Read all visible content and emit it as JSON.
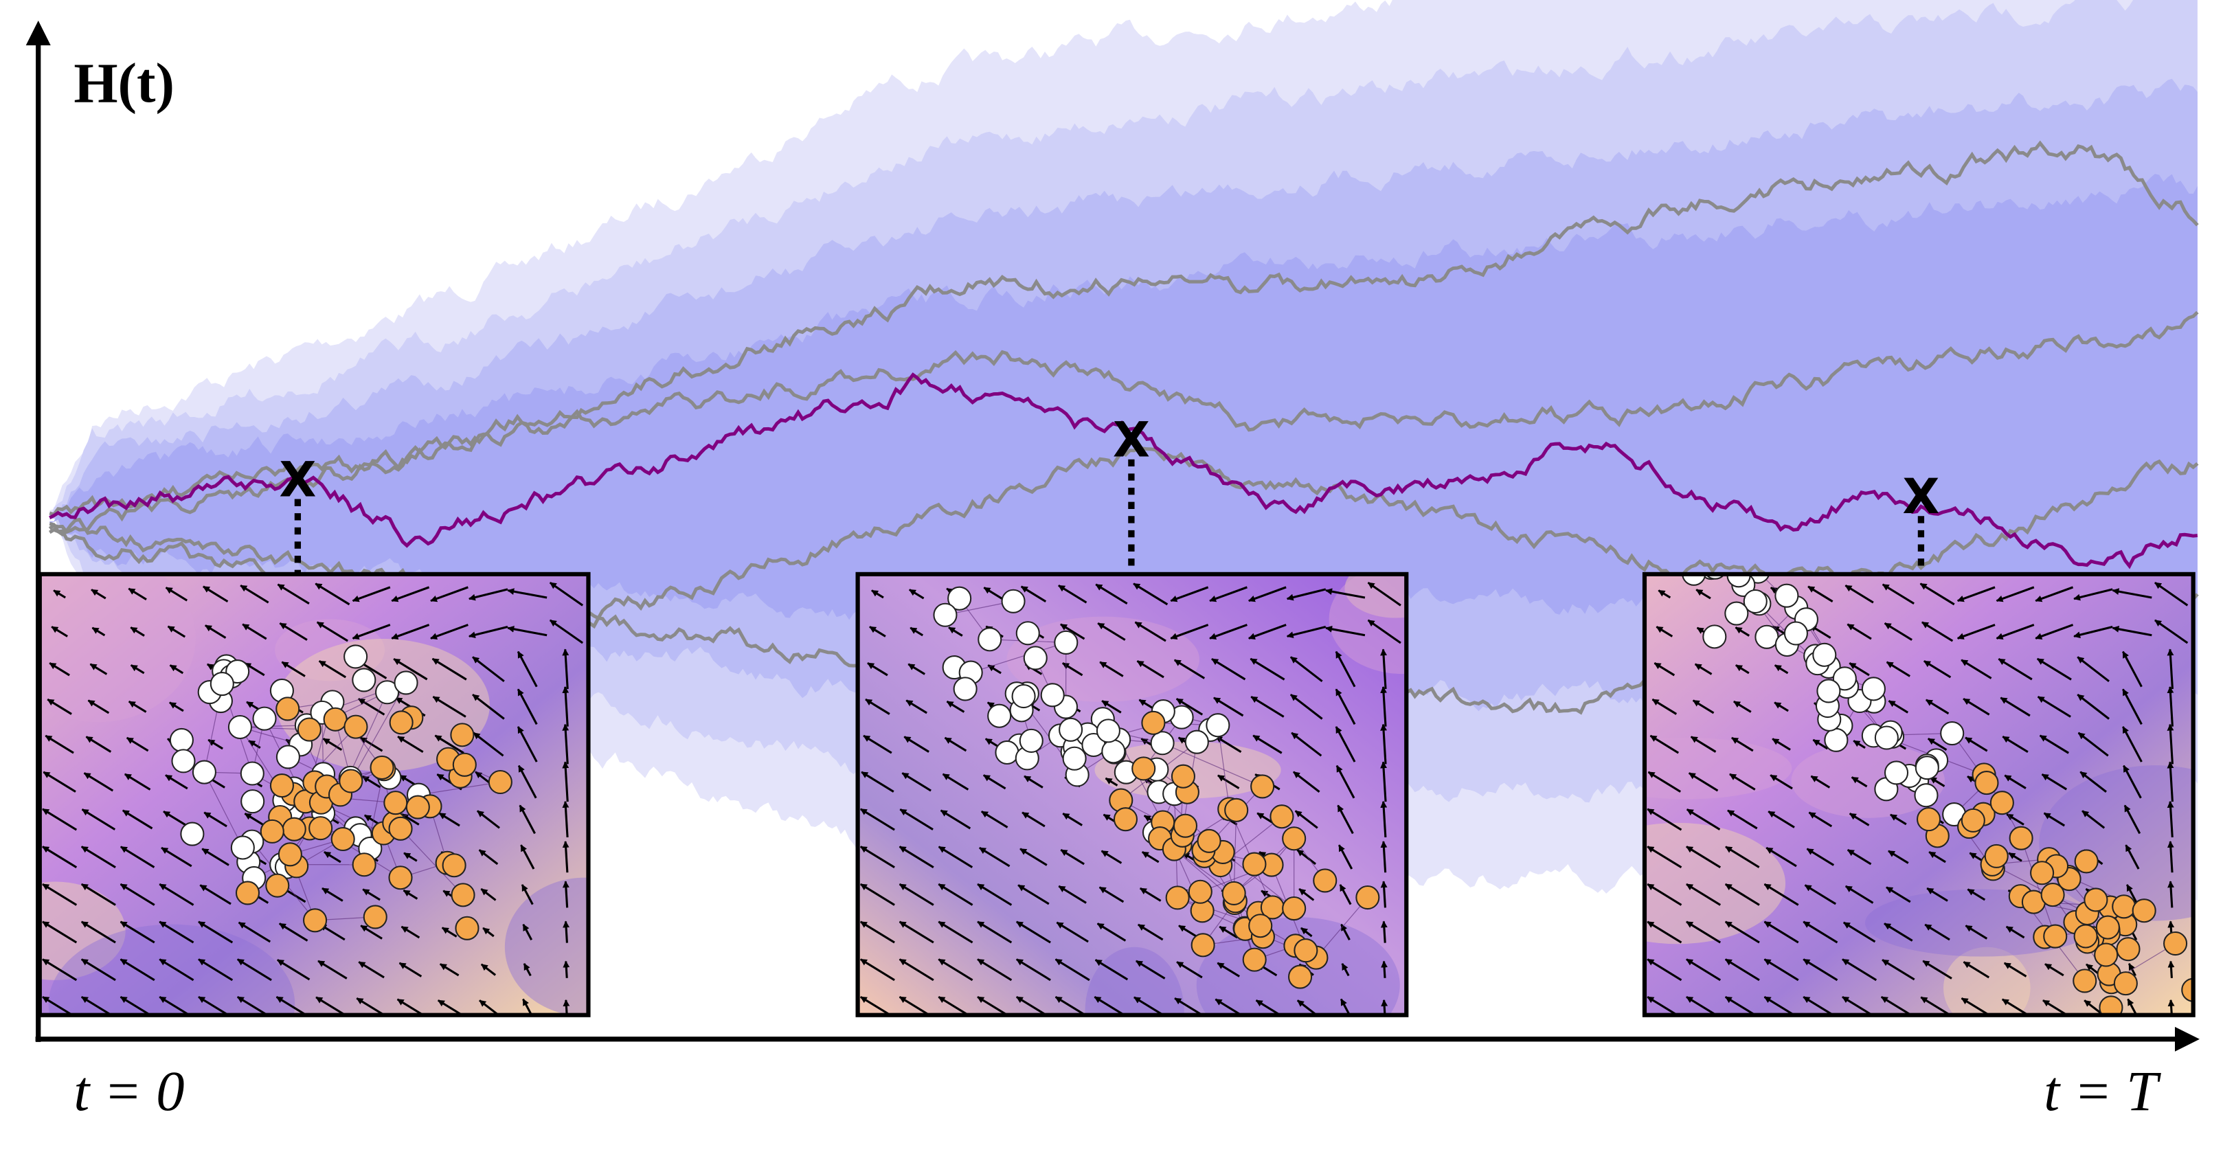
{
  "axis": {
    "y_label": "H(t)",
    "x_start": "t = 0",
    "x_end": "t = T"
  },
  "markers": [
    "X",
    "X",
    "X"
  ]
}
